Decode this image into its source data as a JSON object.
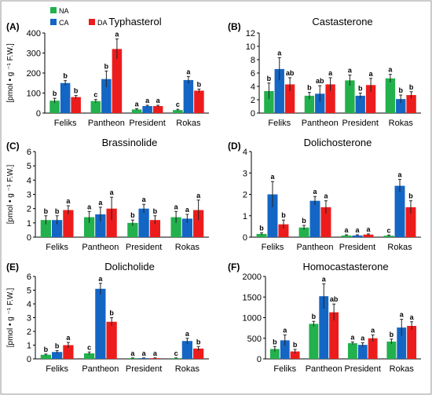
{
  "legend": [
    {
      "name": "NA",
      "color": "#22b14c"
    },
    {
      "name": "CA",
      "color": "#1466c4"
    },
    {
      "name": "DA",
      "color": "#ed1c1c"
    }
  ],
  "chart_data": [
    {
      "type": "bar",
      "label": "(A)",
      "title": "Typhasterol",
      "ylabel": "[pmol • g ⁻¹ F.W.]",
      "ylim": [
        0,
        400
      ],
      "yticks": [
        "0",
        "100",
        "200",
        "300",
        "400"
      ],
      "categories": [
        "Feliks",
        "Pantheon",
        "President",
        "Rokas"
      ],
      "series": [
        {
          "name": "NA",
          "values": [
            62,
            60,
            18,
            15
          ],
          "errors": [
            12,
            8,
            4,
            4
          ],
          "letters": [
            "b",
            "c",
            "a",
            "c"
          ]
        },
        {
          "name": "CA",
          "values": [
            150,
            170,
            35,
            165
          ],
          "errors": [
            12,
            40,
            4,
            18
          ],
          "letters": [
            "b",
            "b",
            "a",
            "a"
          ]
        },
        {
          "name": "DA",
          "values": [
            80,
            320,
            35,
            112
          ],
          "errors": [
            8,
            50,
            4,
            8
          ],
          "letters": [
            "b",
            "a",
            "a",
            "b"
          ]
        }
      ]
    },
    {
      "type": "bar",
      "label": "(B)",
      "title": "Castasterone",
      "ylabel": "",
      "ylim": [
        0,
        12
      ],
      "yticks": [
        "0",
        "2",
        "4",
        "6",
        "8",
        "10",
        "12"
      ],
      "categories": [
        "Feliks",
        "Pantheon",
        "President",
        "Rokas"
      ],
      "series": [
        {
          "name": "NA",
          "values": [
            3.3,
            2.6,
            4.9,
            5.2
          ],
          "errors": [
            1.2,
            0.5,
            0.8,
            0.6
          ],
          "letters": [
            "b",
            "b",
            "a",
            "a"
          ]
        },
        {
          "name": "CA",
          "values": [
            6.6,
            2.9,
            2.6,
            2.1
          ],
          "errors": [
            1.7,
            1.2,
            0.4,
            0.6
          ],
          "letters": [
            "a",
            "ab",
            "b",
            "b"
          ]
        },
        {
          "name": "DA",
          "values": [
            4.3,
            4.3,
            4.2,
            2.7
          ],
          "errors": [
            1.0,
            1.0,
            1.0,
            0.5
          ],
          "letters": [
            "ab",
            "a",
            "a",
            "b"
          ]
        }
      ]
    },
    {
      "type": "bar",
      "label": "(C)",
      "title": "Brassinolide",
      "ylabel": "[pmol • g ⁻¹ F.W.]",
      "ylim": [
        0,
        6
      ],
      "yticks": [
        "0",
        "1",
        "2",
        "3",
        "4",
        "5",
        "6"
      ],
      "categories": [
        "Feliks",
        "Pantheon",
        "President",
        "Rokas"
      ],
      "series": [
        {
          "name": "NA",
          "values": [
            1.2,
            1.4,
            1.0,
            1.4
          ],
          "errors": [
            0.3,
            0.4,
            0.2,
            0.4
          ],
          "letters": [
            "b",
            "a",
            "b",
            "a"
          ]
        },
        {
          "name": "CA",
          "values": [
            1.2,
            1.6,
            2.0,
            1.3
          ],
          "errors": [
            0.3,
            0.5,
            0.3,
            0.3
          ],
          "letters": [
            "b",
            "a",
            "a",
            "a"
          ]
        },
        {
          "name": "DA",
          "values": [
            1.9,
            2.0,
            1.2,
            1.9
          ],
          "errors": [
            0.3,
            0.8,
            0.3,
            0.7
          ],
          "letters": [
            "a",
            "a",
            "b",
            "a"
          ]
        }
      ]
    },
    {
      "type": "bar",
      "label": "(D)",
      "title": "Dolichosterone",
      "ylabel": "",
      "ylim": [
        0,
        4
      ],
      "yticks": [
        "0",
        "1",
        "2",
        "3",
        "4"
      ],
      "categories": [
        "Feliks",
        "Pantheon",
        "President",
        "Rokas"
      ],
      "series": [
        {
          "name": "NA",
          "values": [
            0.15,
            0.45,
            0.08,
            0.07
          ],
          "errors": [
            0.05,
            0.1,
            0.03,
            0.03
          ],
          "letters": [
            "b",
            "b",
            "a",
            "c"
          ]
        },
        {
          "name": "CA",
          "values": [
            2.0,
            1.7,
            0.08,
            2.4
          ],
          "errors": [
            0.6,
            0.2,
            0.03,
            0.3
          ],
          "letters": [
            "a",
            "a",
            "a",
            "a"
          ]
        },
        {
          "name": "DA",
          "values": [
            0.6,
            1.4,
            0.12,
            1.4
          ],
          "errors": [
            0.2,
            0.3,
            0.03,
            0.3
          ],
          "letters": [
            "b",
            "a",
            "a",
            "b"
          ]
        }
      ]
    },
    {
      "type": "bar",
      "label": "(E)",
      "title": "Dolicholide",
      "ylabel": "[pmol • g ⁻¹ F.W.]",
      "ylim": [
        0,
        6
      ],
      "yticks": [
        "0",
        "1",
        "2",
        "3",
        "4",
        "5",
        "6"
      ],
      "categories": [
        "Feliks",
        "Pantheon",
        "President",
        "Rokas"
      ],
      "series": [
        {
          "name": "NA",
          "values": [
            0.3,
            0.4,
            0.05,
            0.05
          ],
          "errors": [
            0.05,
            0.1,
            0.02,
            0.02
          ],
          "letters": [
            "b",
            "c",
            "a",
            "c"
          ]
        },
        {
          "name": "CA",
          "values": [
            0.5,
            5.1,
            0.05,
            1.3
          ],
          "errors": [
            0.1,
            0.4,
            0.02,
            0.2
          ],
          "letters": [
            "b",
            "a",
            "a",
            "a"
          ]
        },
        {
          "name": "DA",
          "values": [
            1.0,
            2.7,
            0.05,
            0.75
          ],
          "errors": [
            0.2,
            0.3,
            0.02,
            0.15
          ],
          "letters": [
            "a",
            "b",
            "a",
            "b"
          ]
        }
      ]
    },
    {
      "type": "bar",
      "label": "(F)",
      "title": "Homocastasterone",
      "ylabel": "",
      "ylim": [
        0,
        2000
      ],
      "yticks": [
        "0",
        "500",
        "1000",
        "1500",
        "2000"
      ],
      "categories": [
        "Feliks",
        "Pantheon",
        "President",
        "Rokas"
      ],
      "series": [
        {
          "name": "NA",
          "values": [
            240,
            850,
            380,
            420
          ],
          "errors": [
            60,
            60,
            30,
            60
          ],
          "letters": [
            "b",
            "b",
            "a",
            "b"
          ]
        },
        {
          "name": "CA",
          "values": [
            450,
            1520,
            340,
            760
          ],
          "errors": [
            130,
            300,
            50,
            200
          ],
          "letters": [
            "a",
            "a",
            "a",
            "a"
          ]
        },
        {
          "name": "DA",
          "values": [
            180,
            1130,
            500,
            800
          ],
          "errors": [
            50,
            200,
            80,
            100
          ],
          "letters": [
            "b",
            "ab",
            "a",
            "a"
          ]
        }
      ]
    }
  ]
}
